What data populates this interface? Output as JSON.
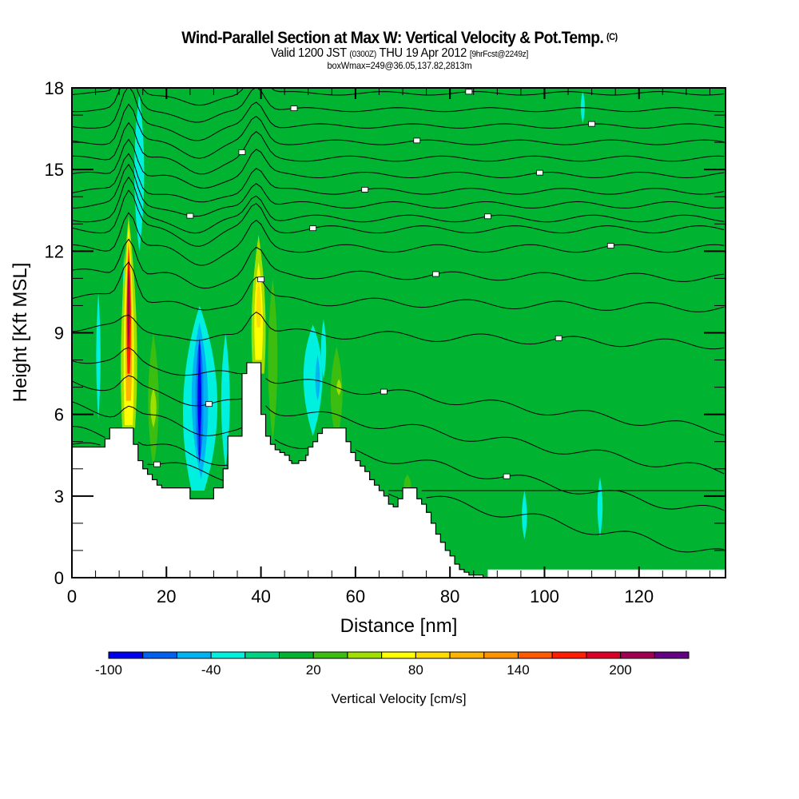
{
  "header": {
    "title": "Wind-Parallel Section at Max W: Vertical Velocity & Pot.Temp.",
    "copyright": "(C)",
    "valid_prefix": "Valid 1200 JST",
    "valid_utc": "(0300Z)",
    "valid_date": "THU 19 Apr 2012",
    "forecast": "[9hrFcst@2249z]",
    "box_info": "boxWmax=249@36.05,137.82,2813m"
  },
  "chart_data": {
    "type": "heatmap",
    "title": "Wind-Parallel Section at Max W: Vertical Velocity & Pot.Temp.",
    "xlabel": "Distance [nm]",
    "ylabel": "Height [Kft MSL]",
    "xlim": [
      0,
      138.3
    ],
    "ylim": [
      0,
      18
    ],
    "xticks": [
      0,
      20,
      40,
      60,
      80,
      100,
      120
    ],
    "xtick_labels": [
      "0",
      "20",
      "40",
      "60",
      "80",
      "100",
      "120"
    ],
    "x_minor_step": 5,
    "yticks": [
      0,
      3,
      6,
      9,
      12,
      15,
      18
    ],
    "ytick_labels": [
      "0",
      "3",
      "6",
      "9",
      "12",
      "15",
      "18"
    ],
    "y_minor_step": 1,
    "grid": false,
    "background_value_cm_s": 10,
    "colorbar": {
      "title": "Vertical Velocity [cm/s]",
      "location": "bottom",
      "boundaries": [
        -100,
        -80,
        -60,
        -40,
        -20,
        0,
        20,
        40,
        60,
        80,
        100,
        120,
        140,
        160,
        180,
        200,
        220,
        240
      ],
      "colors": [
        "#0000ee",
        "#0060f0",
        "#00b4f4",
        "#00f0e0",
        "#00d284",
        "#00b432",
        "#3cbe10",
        "#a0e000",
        "#ffff00",
        "#ffdc00",
        "#ffb400",
        "#ff9400",
        "#ff5a00",
        "#ff1e00",
        "#dc0028",
        "#a00050",
        "#640082"
      ],
      "tick_values": [
        -100,
        -40,
        20,
        80,
        140,
        200
      ],
      "tick_labels": [
        "-100",
        "-40",
        "20",
        "80",
        "140",
        "200"
      ]
    },
    "terrain_kft": {
      "x": [
        0,
        6.5,
        7,
        8,
        9,
        12.5,
        13,
        14,
        15,
        16,
        17,
        18,
        19,
        24.8,
        25,
        26,
        28,
        29.5,
        30,
        31,
        32,
        33,
        36,
        37,
        38,
        39.5,
        40,
        41,
        42,
        43,
        44,
        45,
        46,
        46.5,
        47,
        48,
        49.5,
        50,
        51,
        52,
        53,
        54,
        56,
        57,
        58,
        59,
        60,
        61,
        62,
        63,
        64,
        65,
        66,
        67,
        68,
        69,
        70,
        71,
        72,
        73,
        74,
        75,
        76,
        77,
        78,
        79,
        80,
        81,
        82,
        83,
        84,
        85,
        86,
        87,
        88,
        138.3
      ],
      "y": [
        4.8,
        4.8,
        5.1,
        5.5,
        5.5,
        5.5,
        4.9,
        4.3,
        4.0,
        3.8,
        3.6,
        3.4,
        3.3,
        3.3,
        2.9,
        2.9,
        2.9,
        2.9,
        3.3,
        3.3,
        4.0,
        5.2,
        7.5,
        7.9,
        7.9,
        7.9,
        6.0,
        5.2,
        4.9,
        4.7,
        4.6,
        4.5,
        4.3,
        4.2,
        4.2,
        4.3,
        4.5,
        4.8,
        5.0,
        5.3,
        5.5,
        5.5,
        5.5,
        5.5,
        5.0,
        4.6,
        4.3,
        4.1,
        3.9,
        3.6,
        3.4,
        3.2,
        3.0,
        2.7,
        2.6,
        2.9,
        3.3,
        3.3,
        3.3,
        2.9,
        2.7,
        2.4,
        2.0,
        1.6,
        1.3,
        1.0,
        0.8,
        0.5,
        0.3,
        0.2,
        0.1,
        0.1,
        0.1,
        0.0,
        0.0,
        0.0
      ]
    },
    "theta_contour_levels_kft_at_x0": [
      4.9,
      5.4,
      6.3,
      7.2,
      8.1,
      9.2,
      10.3,
      11.2,
      12.1,
      12.8,
      13.2,
      13.7,
      14.2,
      14.8,
      15.4,
      16.0,
      16.6,
      17.2,
      17.8
    ],
    "features": [
      {
        "name": "updraft-core-1",
        "x": 12,
        "y_range": [
          5.5,
          13
        ],
        "peak_cm_s": 200
      },
      {
        "name": "updraft-core-2",
        "x": 39.5,
        "y_range": [
          7.9,
          11.5
        ],
        "peak_cm_s": 80
      },
      {
        "name": "downdraft-core",
        "x": 27,
        "y_range": [
          3.5,
          9.5
        ],
        "min_cm_s": -100
      },
      {
        "name": "downdraft-minor",
        "x": 51,
        "y_range": [
          6.5,
          9.2
        ],
        "min_cm_s": -60
      }
    ]
  }
}
